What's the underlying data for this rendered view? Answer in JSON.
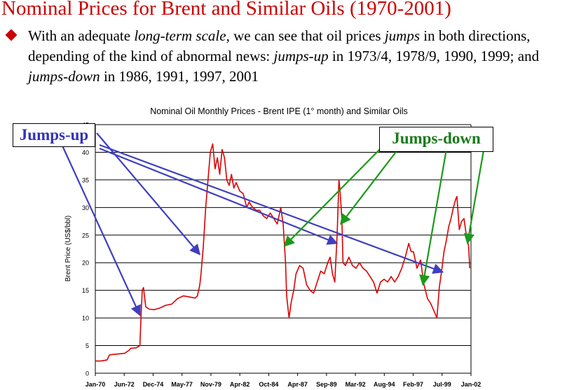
{
  "slide": {
    "title": "Nominal Prices for Brent and Similar Oils (1970-2001)",
    "bullet": {
      "parts": [
        {
          "text": "With an adequate ",
          "italic": false
        },
        {
          "text": "long-term scale",
          "italic": true
        },
        {
          "text": ", we can see that oil prices ",
          "italic": false
        },
        {
          "text": "jumps",
          "italic": true
        },
        {
          "text": "  in both directions, depending of the kind of abnormal news:  ",
          "italic": false
        },
        {
          "text": "jumps-up",
          "italic": true
        },
        {
          "text": " in 1973/4, 1978/9, 1990, 1999; and ",
          "italic": false
        },
        {
          "text": "jumps-down",
          "italic": true
        },
        {
          "text": " in 1986, 1991, 1997, 2001",
          "italic": false
        }
      ]
    }
  },
  "callouts": {
    "up_label": "Jumps-up",
    "down_label": "Jumps-down",
    "up_color": "#3f3fbf",
    "down_color": "#1a9a1a"
  },
  "chart_data": {
    "type": "line",
    "title": "Nominal Oil Monthly Prices -  Brent IPE (1° month) and Similar Oils",
    "xlabel": "",
    "ylabel": "Brent Price (US$/bbl)",
    "ylim": [
      0,
      45
    ],
    "yticks": [
      0,
      5,
      10,
      15,
      20,
      25,
      30,
      35,
      40,
      45
    ],
    "xlim": [
      1970.0,
      2002.0
    ],
    "xtick_labels": [
      "Jan-70",
      "Jun-72",
      "Dec-74",
      "May-77",
      "Nov-79",
      "Apr-82",
      "Oct-84",
      "Apr-87",
      "Sep-89",
      "Mar-92",
      "Aug-94",
      "Feb-97",
      "Jul-99",
      "Jan-02"
    ],
    "grid": true,
    "line_color": "#dd0000",
    "series": [
      {
        "name": "",
        "x": [
          1970.0,
          1970.5,
          1971.0,
          1971.2,
          1971.5,
          1972.0,
          1972.5,
          1972.9,
          1973.0,
          1973.5,
          1973.8,
          1973.9,
          1974.0,
          1974.1,
          1974.3,
          1974.6,
          1975.0,
          1975.5,
          1976.0,
          1976.5,
          1977.0,
          1977.5,
          1978.0,
          1978.5,
          1978.7,
          1978.9,
          1979.0,
          1979.2,
          1979.4,
          1979.6,
          1979.8,
          1980.0,
          1980.2,
          1980.4,
          1980.6,
          1980.8,
          1981.0,
          1981.2,
          1981.4,
          1981.6,
          1981.8,
          1982.0,
          1982.3,
          1982.6,
          1982.9,
          1983.1,
          1983.4,
          1983.7,
          1984.0,
          1984.3,
          1984.6,
          1984.9,
          1985.2,
          1985.5,
          1985.8,
          1986.0,
          1986.2,
          1986.3,
          1986.5,
          1986.7,
          1986.9,
          1987.1,
          1987.4,
          1987.7,
          1988.0,
          1988.3,
          1988.6,
          1988.9,
          1989.2,
          1989.5,
          1989.8,
          1990.0,
          1990.2,
          1990.4,
          1990.6,
          1990.75,
          1990.85,
          1991.0,
          1991.1,
          1991.3,
          1991.6,
          1991.9,
          1992.2,
          1992.5,
          1992.8,
          1993.1,
          1993.4,
          1993.7,
          1994.0,
          1994.3,
          1994.6,
          1994.9,
          1995.2,
          1995.5,
          1995.8,
          1996.1,
          1996.4,
          1996.7,
          1996.9,
          1997.1,
          1997.4,
          1997.7,
          1998.0,
          1998.3,
          1998.6,
          1998.9,
          1999.1,
          1999.3,
          1999.5,
          1999.7,
          1999.9,
          2000.1,
          2000.3,
          2000.5,
          2000.7,
          2000.8,
          2001.0,
          2001.2,
          2001.4,
          2001.6,
          2001.8,
          2001.9
        ],
        "y": [
          2.2,
          2.2,
          2.4,
          3.3,
          3.4,
          3.5,
          3.6,
          4.2,
          4.5,
          4.6,
          5.0,
          10.5,
          15.0,
          15.5,
          12.0,
          11.6,
          11.5,
          11.8,
          12.3,
          12.5,
          13.5,
          14.0,
          13.8,
          13.6,
          14.0,
          16.0,
          18.0,
          23.0,
          30.0,
          35.0,
          40.0,
          41.5,
          37.0,
          39.0,
          36.0,
          40.5,
          39.0,
          35.0,
          34.0,
          36.0,
          33.5,
          34.5,
          33.0,
          32.5,
          30.0,
          31.0,
          30.0,
          29.5,
          29.5,
          28.5,
          28.0,
          29.0,
          28.0,
          27.0,
          30.0,
          27.0,
          20.0,
          14.0,
          10.0,
          13.0,
          15.0,
          18.0,
          19.5,
          19.0,
          16.0,
          15.0,
          14.5,
          16.5,
          18.5,
          18.0,
          20.0,
          21.0,
          18.0,
          16.5,
          25.0,
          35.0,
          33.0,
          28.0,
          20.0,
          19.5,
          21.0,
          19.5,
          19.0,
          20.0,
          19.0,
          18.5,
          17.5,
          16.5,
          14.5,
          16.5,
          17.0,
          16.5,
          17.5,
          16.5,
          17.5,
          19.0,
          21.0,
          23.5,
          22.0,
          22.0,
          19.0,
          20.5,
          16.0,
          13.5,
          12.5,
          11.0,
          10.0,
          15.5,
          18.5,
          22.0,
          24.0,
          26.5,
          28.0,
          30.0,
          31.5,
          32.0,
          26.0,
          27.5,
          28.0,
          25.0,
          23.0,
          19.0
        ]
      }
    ]
  }
}
